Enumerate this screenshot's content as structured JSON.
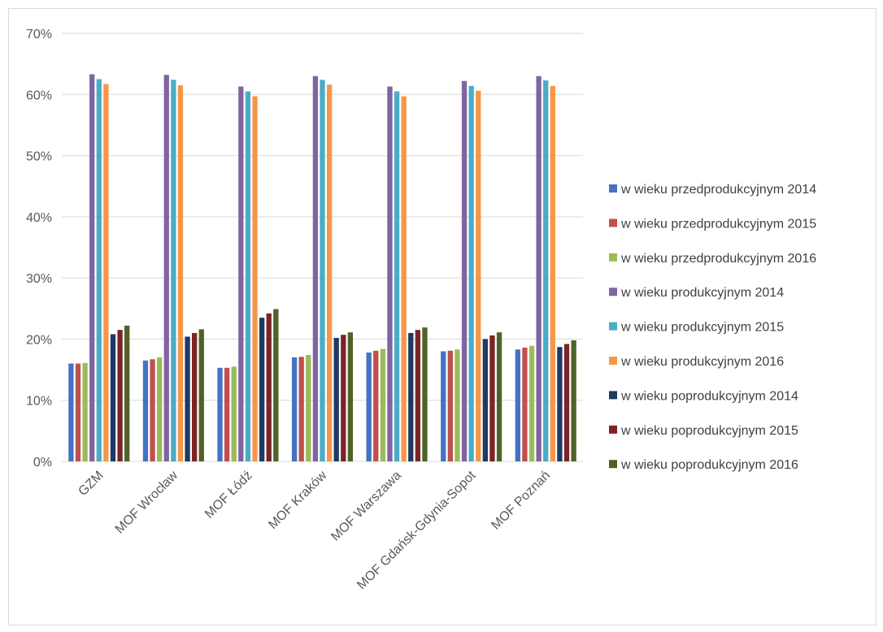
{
  "chart_data": {
    "type": "bar",
    "title": "",
    "xlabel": "",
    "ylabel": "",
    "ylim": [
      0,
      0.7
    ],
    "yticks": [
      "0%",
      "10%",
      "20%",
      "30%",
      "40%",
      "50%",
      "60%",
      "70%"
    ],
    "grid": true,
    "legend_position": "right",
    "categories": [
      "GZM",
      "MOF Wrocław",
      "MOF Łódź",
      "MOF Kraków",
      "MOF Warszawa",
      "MOF Gdańsk-Gdynia-Sopot",
      "MOF Poznań"
    ],
    "series": [
      {
        "name": "w wieku przedprodukcyjnym 2014",
        "color": "#4472c4",
        "values": [
          0.16,
          0.165,
          0.153,
          0.17,
          0.178,
          0.18,
          0.183
        ]
      },
      {
        "name": "w wieku przedprodukcyjnym 2015",
        "color": "#c0504d",
        "values": [
          0.16,
          0.167,
          0.153,
          0.171,
          0.181,
          0.181,
          0.186
        ]
      },
      {
        "name": "w wieku przedprodukcyjnym 2016",
        "color": "#9bbb59",
        "values": [
          0.161,
          0.17,
          0.155,
          0.174,
          0.184,
          0.183,
          0.189
        ]
      },
      {
        "name": "w wieku produkcyjnym 2014",
        "color": "#8064a2",
        "values": [
          0.633,
          0.632,
          0.613,
          0.63,
          0.613,
          0.622,
          0.63
        ]
      },
      {
        "name": "w wieku produkcyjnym 2015",
        "color": "#4bacc6",
        "values": [
          0.625,
          0.624,
          0.605,
          0.624,
          0.605,
          0.614,
          0.623
        ]
      },
      {
        "name": "w wieku produkcyjnym 2016",
        "color": "#f79646",
        "values": [
          0.617,
          0.615,
          0.597,
          0.616,
          0.597,
          0.606,
          0.614
        ]
      },
      {
        "name": "w wieku poprodukcyjnym 2014",
        "color": "#1f3864",
        "values": [
          0.208,
          0.204,
          0.235,
          0.202,
          0.21,
          0.2,
          0.187
        ]
      },
      {
        "name": "w wieku poprodukcyjnym 2015",
        "color": "#7b2426",
        "values": [
          0.215,
          0.21,
          0.242,
          0.207,
          0.215,
          0.206,
          0.192
        ]
      },
      {
        "name": "w wieku poprodukcyjnym 2016",
        "color": "#4f6228",
        "values": [
          0.222,
          0.216,
          0.249,
          0.211,
          0.219,
          0.211,
          0.198
        ]
      }
    ]
  }
}
